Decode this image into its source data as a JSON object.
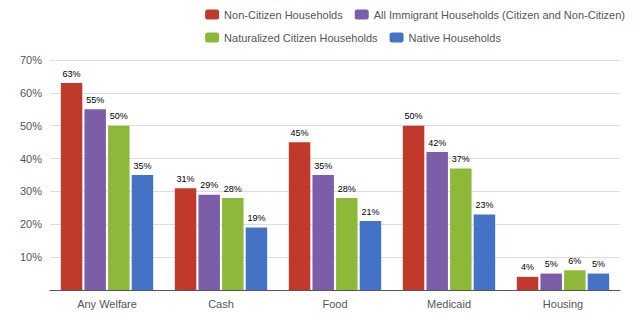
{
  "chart_data": {
    "type": "bar",
    "categories": [
      "Any Welfare",
      "Cash",
      "Food",
      "Medicaid",
      "Housing"
    ],
    "series": [
      {
        "name": "Non-Citizen Households",
        "color": "#c0392b",
        "values": [
          63,
          31,
          45,
          50,
          4
        ],
        "value_labels": [
          "63%",
          "31%",
          "45%",
          "50%",
          "4%"
        ]
      },
      {
        "name": "All Immigrant Households (Citizen and Non-Citizen)",
        "color": "#7b5ea7",
        "values": [
          55,
          29,
          35,
          42,
          5
        ],
        "value_labels": [
          "55%",
          "29%",
          "35%",
          "42%",
          "5%"
        ]
      },
      {
        "name": "Naturalized Citizen Households",
        "color": "#8db83a",
        "values": [
          50,
          28,
          28,
          37,
          6
        ],
        "value_labels": [
          "50%",
          "28%",
          "28%",
          "37%",
          "6%"
        ]
      },
      {
        "name": "Native Households",
        "color": "#4472c4",
        "values": [
          35,
          19,
          21,
          23,
          5
        ],
        "value_labels": [
          "35%",
          "19%",
          "21%",
          "23%",
          "5%"
        ]
      }
    ],
    "ylim": [
      0,
      70
    ],
    "yticks": [
      {
        "value": 10,
        "label": "10%"
      },
      {
        "value": 20,
        "label": "20%"
      },
      {
        "value": 30,
        "label": "30%"
      },
      {
        "value": 40,
        "label": "40%"
      },
      {
        "value": 50,
        "label": "50%"
      },
      {
        "value": 60,
        "label": "60%"
      },
      {
        "value": 70,
        "label": "70%"
      }
    ],
    "grid": true,
    "legend": "upper right",
    "data_labels": true
  }
}
